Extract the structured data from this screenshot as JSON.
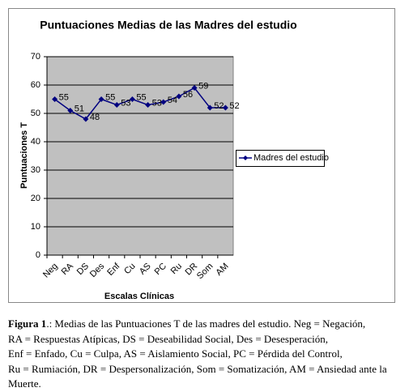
{
  "chart_data": {
    "type": "line",
    "title": "Puntuaciones Medias de las Madres del estudio",
    "x_label": "Escalas Clínicas",
    "y_label": "Puntuaciones T",
    "categories": [
      "Neg",
      "RA",
      "DS",
      "Des",
      "Enf",
      "Cu",
      "AS",
      "PC",
      "Ru",
      "DR",
      "Som",
      "AM"
    ],
    "series": [
      {
        "name": "Madres del estudio",
        "color": "#000080",
        "values": [
          55,
          51,
          48,
          55,
          53,
          55,
          53,
          54,
          56,
          59,
          52,
          52
        ]
      }
    ],
    "ylim": [
      0,
      70
    ],
    "yticks": [
      0,
      10,
      20,
      30,
      40,
      50,
      60,
      70
    ],
    "grid": true,
    "legend": "right"
  },
  "caption": {
    "label": "Figura 1",
    "lines": [
      ".: Medias de las Puntuaciones T de las madres del estudio. Neg = Negación,",
      "RA = Respuestas Atípicas, DS = Deseabilidad Social, Des = Desesperación,",
      "Enf = Enfado, Cu = Culpa, AS = Aislamiento Social, PC = Pérdida del Control,",
      "Ru = Rumiación, DR = Despersonalización, Som = Somatización, AM = Ansiedad ante la",
      "Muerte."
    ]
  }
}
